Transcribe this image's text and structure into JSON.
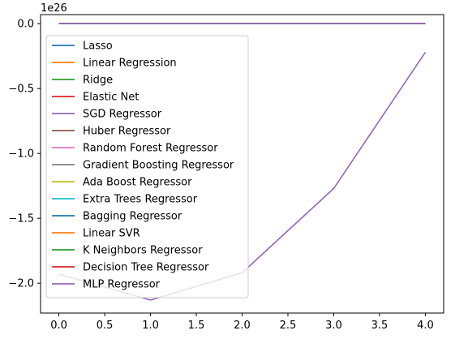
{
  "chart_data": {
    "type": "line",
    "x": [
      0,
      1,
      2,
      3,
      4
    ],
    "xlim": [
      -0.2,
      4.2
    ],
    "ylim": [
      -2.23,
      0.07
    ],
    "y_scale_label": "1e26",
    "x_ticks": [
      0,
      0.5,
      1,
      1.5,
      2,
      2.5,
      3,
      3.5,
      4
    ],
    "x_tick_labels": [
      "0.0",
      "0.5",
      "1.0",
      "1.5",
      "2.0",
      "2.5",
      "3.0",
      "3.5",
      "4.0"
    ],
    "y_ticks": [
      0,
      -0.5,
      -1,
      -1.5,
      -2
    ],
    "y_tick_labels": [
      "0.0",
      "−0.5",
      "−1.0",
      "−1.5",
      "−2.0"
    ],
    "grid": false,
    "legend_position": "upper-left",
    "series": [
      {
        "name": "Lasso",
        "color": "#1f77b4",
        "values": [
          0,
          0,
          0,
          0,
          0
        ]
      },
      {
        "name": "Linear Regression",
        "color": "#ff7f0e",
        "values": [
          0,
          0,
          0,
          0,
          0
        ]
      },
      {
        "name": "Ridge",
        "color": "#2ca02c",
        "values": [
          0,
          0,
          0,
          0,
          0
        ]
      },
      {
        "name": "Elastic Net",
        "color": "#d62728",
        "values": [
          0,
          0,
          0,
          0,
          0
        ]
      },
      {
        "name": "SGD Regressor",
        "color": "#9467bd",
        "values": [
          -1.93,
          -2.13,
          -1.92,
          -1.27,
          -0.22
        ]
      },
      {
        "name": "Huber Regressor",
        "color": "#8c564b",
        "values": [
          0,
          0,
          0,
          0,
          0
        ]
      },
      {
        "name": "Random Forest Regressor",
        "color": "#e377c2",
        "values": [
          0,
          0,
          0,
          0,
          0
        ]
      },
      {
        "name": "Gradient Boosting Regressor",
        "color": "#7f7f7f",
        "values": [
          0,
          0,
          0,
          0,
          0
        ]
      },
      {
        "name": "Ada Boost Regressor",
        "color": "#bcbd22",
        "values": [
          0,
          0,
          0,
          0,
          0
        ]
      },
      {
        "name": "Extra Trees Regressor",
        "color": "#17becf",
        "values": [
          0,
          0,
          0,
          0,
          0
        ]
      },
      {
        "name": "Bagging Regressor",
        "color": "#1f77b4",
        "values": [
          0,
          0,
          0,
          0,
          0
        ]
      },
      {
        "name": "Linear SVR",
        "color": "#ff7f0e",
        "values": [
          0,
          0,
          0,
          0,
          0
        ]
      },
      {
        "name": "K Neighbors Regressor",
        "color": "#2ca02c",
        "values": [
          0,
          0,
          0,
          0,
          0
        ]
      },
      {
        "name": "Decision Tree Regressor",
        "color": "#d62728",
        "values": [
          0,
          0,
          0,
          0,
          0
        ]
      },
      {
        "name": "MLP Regressor",
        "color": "#9467bd",
        "values": [
          0,
          0,
          0,
          0,
          0
        ]
      }
    ]
  }
}
